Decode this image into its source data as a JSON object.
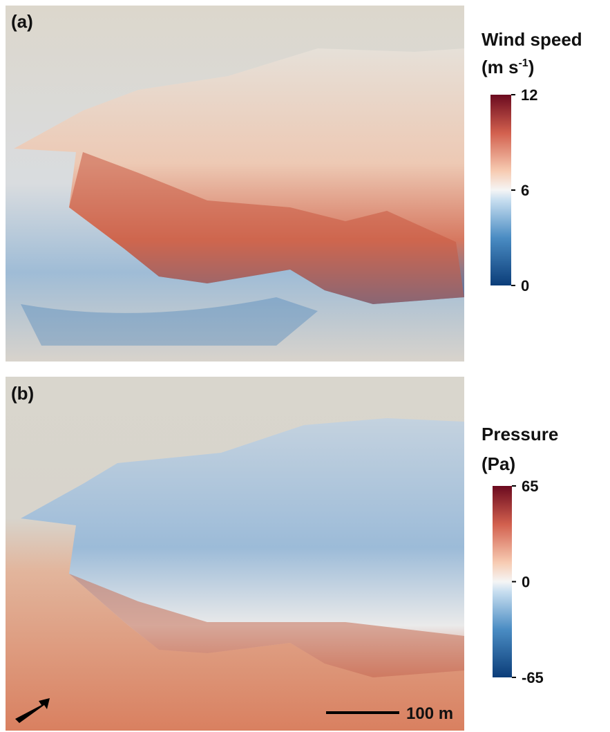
{
  "panels": [
    {
      "label": "(a)",
      "title": "Wind speed",
      "unit": {
        "text": "(m s",
        "sup": "-1",
        "tail": ")"
      },
      "colorbar": {
        "lim": [
          0,
          12
        ],
        "ticks": [
          0,
          6,
          12
        ]
      }
    },
    {
      "label": "(b)",
      "title": "Pressure",
      "unit": {
        "text": "(Pa)"
      },
      "colorbar": {
        "lim": [
          -65,
          65
        ],
        "ticks": [
          -65,
          0,
          65
        ]
      }
    }
  ],
  "scale_bar": "100 m"
}
